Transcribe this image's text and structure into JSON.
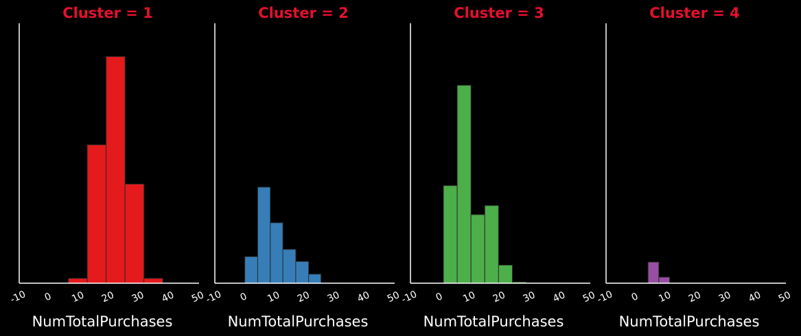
{
  "chart_data": [
    {
      "type": "bar",
      "title": "Cluster = 1",
      "xlabel": "NumTotalPurchases",
      "xlim": [
        -10,
        50
      ],
      "xticks": [
        "-10",
        "0",
        "10",
        "20",
        "30",
        "40",
        "50"
      ],
      "color": "#e41a1c",
      "bins": [
        {
          "x0": 6.4,
          "x1": 12.7,
          "count": 16
        },
        {
          "x0": 12.7,
          "x1": 19.0,
          "count": 458
        },
        {
          "x0": 19.0,
          "x1": 25.3,
          "count": 750
        },
        {
          "x0": 25.3,
          "x1": 31.6,
          "count": 328
        },
        {
          "x0": 31.6,
          "x1": 37.9,
          "count": 16
        }
      ]
    },
    {
      "type": "bar",
      "title": "Cluster = 2",
      "xlabel": "NumTotalPurchases",
      "xlim": [
        -10,
        50
      ],
      "xticks": [
        "-10",
        "0",
        "10",
        "20",
        "30",
        "40",
        "50"
      ],
      "color": "#377eb8",
      "bins": [
        {
          "x0": 0.0,
          "x1": 4.3,
          "count": 88
        },
        {
          "x0": 4.3,
          "x1": 8.5,
          "count": 318
        },
        {
          "x0": 8.5,
          "x1": 12.7,
          "count": 200
        },
        {
          "x0": 12.7,
          "x1": 17.0,
          "count": 112
        },
        {
          "x0": 17.0,
          "x1": 21.3,
          "count": 72
        },
        {
          "x0": 21.3,
          "x1": 25.4,
          "count": 30
        }
      ]
    },
    {
      "type": "bar",
      "title": "Cluster = 3",
      "xlabel": "NumTotalPurchases",
      "xlim": [
        -10,
        50
      ],
      "xticks": [
        "-10",
        "0",
        "10",
        "20",
        "30",
        "40",
        "50"
      ],
      "color": "#4daf4a",
      "bins": [
        {
          "x0": 1.0,
          "x1": 5.6,
          "count": 323
        },
        {
          "x0": 5.6,
          "x1": 10.2,
          "count": 655
        },
        {
          "x0": 10.2,
          "x1": 14.8,
          "count": 227
        },
        {
          "x0": 14.8,
          "x1": 19.4,
          "count": 257
        },
        {
          "x0": 19.4,
          "x1": 24.0,
          "count": 60
        },
        {
          "x0": 24.0,
          "x1": 28.6,
          "count": 4
        }
      ]
    },
    {
      "type": "bar",
      "title": "Cluster = 4",
      "xlabel": "NumTotalPurchases",
      "xlim": [
        -10,
        50
      ],
      "xticks": [
        "-10",
        "0",
        "10",
        "20",
        "30",
        "40",
        "50"
      ],
      "color": "#984ea3",
      "bins": [
        {
          "x0": 4.0,
          "x1": 7.6,
          "count": 70
        },
        {
          "x0": 7.6,
          "x1": 11.2,
          "count": 20
        }
      ]
    }
  ],
  "colors": {
    "background": "#000000",
    "title": "#e6102e",
    "axis": "#ffffff",
    "bar_edge": "#2b2b2b"
  }
}
